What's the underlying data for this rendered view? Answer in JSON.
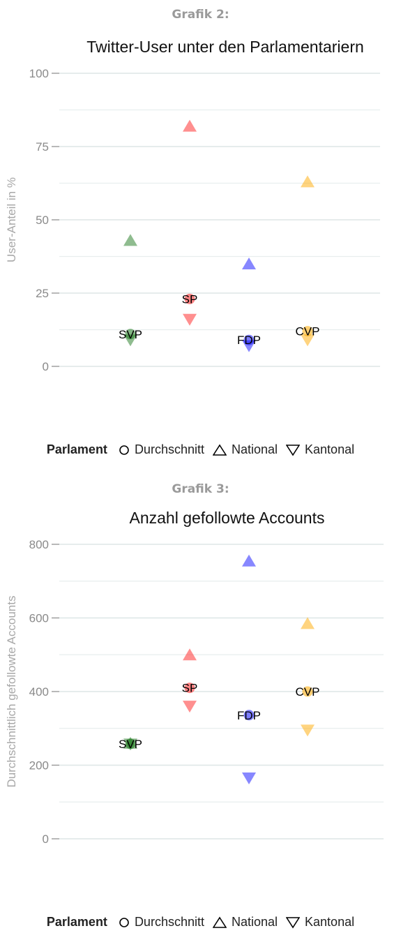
{
  "figures": [
    {
      "label": "Grafik 2:",
      "legend": {
        "title": "Parlament",
        "items": [
          {
            "shape": "circle",
            "label": "Durchschnitt"
          },
          {
            "shape": "triangle-up",
            "label": "National"
          },
          {
            "shape": "triangle-down",
            "label": "Kantonal"
          }
        ]
      }
    },
    {
      "label": "Grafik 3:",
      "legend": {
        "title": "Parlament",
        "items": [
          {
            "shape": "circle",
            "label": "Durchschnitt"
          },
          {
            "shape": "triangle-up",
            "label": "National"
          },
          {
            "shape": "triangle-down",
            "label": "Kantonal"
          }
        ]
      }
    }
  ],
  "chart_data": [
    {
      "type": "scatter",
      "title": "Twitter-User unter den Parlamentariern",
      "xlabel": "",
      "ylabel": "User-Anteil in %",
      "ylim": [
        0,
        100
      ],
      "yticks": [
        0,
        25,
        50,
        75,
        100
      ],
      "grid": true,
      "legend_position": "bottom",
      "categories": [
        "SVP",
        "SP",
        "FDP",
        "CVP"
      ],
      "colors": {
        "SVP": "#1f7a1f",
        "SP": "#ff2020",
        "FDP": "#1010ff",
        "CVP": "#ffaa00"
      },
      "series": [
        {
          "name": "Durchschnitt",
          "shape": "circle",
          "values": [
            11,
            23,
            9,
            12
          ]
        },
        {
          "name": "National",
          "shape": "triangle-up",
          "values": [
            43,
            82,
            35,
            63
          ]
        },
        {
          "name": "Kantonal",
          "shape": "triangle-down",
          "values": [
            9,
            16,
            7,
            9
          ]
        }
      ]
    },
    {
      "type": "scatter",
      "title": "Anzahl gefollowte Accounts",
      "xlabel": "",
      "ylabel": "Durchschnittlich gefollowte Accounts",
      "ylim": [
        0,
        800
      ],
      "yticks": [
        0,
        200,
        400,
        600,
        800
      ],
      "grid": true,
      "legend_position": "bottom",
      "categories": [
        "SVP",
        "SP",
        "FDP",
        "CVP"
      ],
      "colors": {
        "SVP": "#1f7a1f",
        "SP": "#ff2020",
        "FDP": "#1010ff",
        "CVP": "#ffaa00"
      },
      "series": [
        {
          "name": "Durchschnitt",
          "shape": "circle",
          "values": [
            258,
            410,
            336,
            400
          ]
        },
        {
          "name": "National",
          "shape": "triangle-up",
          "values": [
            260,
            500,
            755,
            585
          ]
        },
        {
          "name": "Kantonal",
          "shape": "triangle-down",
          "values": [
            257,
            360,
            165,
            295
          ]
        }
      ]
    }
  ]
}
